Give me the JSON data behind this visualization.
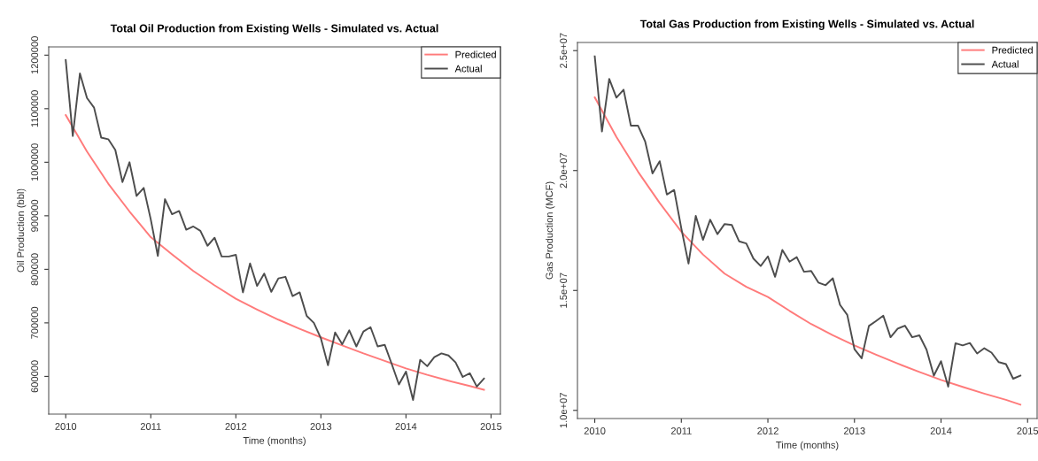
{
  "chart_data": [
    {
      "type": "line",
      "title": "Total Oil Production from Existing Wells - Simulated vs. Actual",
      "xlabel": "Time (months)",
      "ylabel": "Oil Production (bbl)",
      "xlim": [
        2009.8,
        2015.11
      ],
      "xticks": [
        2010,
        2011,
        2012,
        2013,
        2014,
        2015
      ],
      "ylim": [
        529600,
        1215400
      ],
      "yticks": [
        600000,
        700000,
        800000,
        900000,
        1000000,
        1100000,
        1200000
      ],
      "grid": false,
      "legend": "top right",
      "line_style": "solid",
      "marker": "none",
      "series": [
        {
          "name": "Predicted",
          "color": "#ff7b7b",
          "x": [
            2010,
            2010.25,
            2010.5,
            2010.75,
            2011,
            2011.25,
            2011.5,
            2011.75,
            2012,
            2012.25,
            2012.5,
            2012.75,
            2013,
            2013.25,
            2013.5,
            2013.75,
            2014,
            2014.25,
            2014.5,
            2014.75,
            2014.917
          ],
          "values": [
            1088000,
            1020000,
            960000,
            908000,
            860000,
            828000,
            797000,
            770000,
            745000,
            725000,
            706000,
            689000,
            673000,
            658000,
            643000,
            629000,
            615000,
            603000,
            592000,
            582000,
            575000
          ]
        },
        {
          "name": "Actual",
          "color": "#4d4d4d",
          "x": [
            2010,
            2010.083,
            2010.167,
            2010.25,
            2010.333,
            2010.417,
            2010.5,
            2010.583,
            2010.667,
            2010.75,
            2010.833,
            2010.917,
            2011,
            2011.083,
            2011.167,
            2011.25,
            2011.333,
            2011.417,
            2011.5,
            2011.583,
            2011.667,
            2011.75,
            2011.833,
            2011.917,
            2012,
            2012.083,
            2012.167,
            2012.25,
            2012.333,
            2012.417,
            2012.5,
            2012.583,
            2012.667,
            2012.75,
            2012.833,
            2012.917,
            2013,
            2013.083,
            2013.167,
            2013.25,
            2013.333,
            2013.417,
            2013.5,
            2013.583,
            2013.667,
            2013.75,
            2013.833,
            2013.917,
            2014,
            2014.083,
            2014.167,
            2014.25,
            2014.333,
            2014.417,
            2014.5,
            2014.583,
            2014.667,
            2014.75,
            2014.833,
            2014.917
          ],
          "values": [
            1191000,
            1049000,
            1166000,
            1120000,
            1102000,
            1046000,
            1043000,
            1023000,
            963000,
            1000000,
            937000,
            952000,
            893000,
            825000,
            931000,
            903000,
            909000,
            874000,
            880000,
            872000,
            844000,
            859000,
            824000,
            824000,
            827000,
            757000,
            811000,
            769000,
            792000,
            758000,
            783000,
            786000,
            750000,
            757000,
            713000,
            700000,
            671000,
            621000,
            682000,
            660000,
            686000,
            656000,
            684000,
            692000,
            656000,
            659000,
            623000,
            585000,
            609000,
            556000,
            631000,
            619000,
            636000,
            643000,
            639000,
            626000,
            599000,
            606000,
            581000,
            596000
          ]
        }
      ]
    },
    {
      "type": "line",
      "title": "Total Gas Production from Existing Wells - Simulated vs. Actual",
      "xlabel": "Time (months)",
      "ylabel": "Gas Production (MCF)",
      "xlim": [
        2009.8,
        2015.11
      ],
      "xticks": [
        2010,
        2011,
        2012,
        2013,
        2014,
        2015
      ],
      "ylim": [
        9660000,
        25340000
      ],
      "yticks": [
        {
          "value": 10000000,
          "label": "1.0e+07"
        },
        {
          "value": 15000000,
          "label": "1.5e+07"
        },
        {
          "value": 20000000,
          "label": "2.0e+07"
        },
        {
          "value": 25000000,
          "label": "2.5e+07"
        }
      ],
      "grid": false,
      "legend": "top right",
      "line_style": "solid",
      "marker": "none",
      "series": [
        {
          "name": "Predicted",
          "color": "#ff7b7b",
          "x": [
            2010,
            2010.25,
            2010.5,
            2010.75,
            2011,
            2011.25,
            2011.5,
            2011.75,
            2012,
            2012.25,
            2012.5,
            2012.75,
            2013,
            2013.25,
            2013.5,
            2013.75,
            2014,
            2014.25,
            2014.5,
            2014.75,
            2014.917
          ],
          "values": [
            23050000,
            21400000,
            19950000,
            18650000,
            17450000,
            16500000,
            15700000,
            15150000,
            14730000,
            14150000,
            13600000,
            13130000,
            12710000,
            12320000,
            11950000,
            11600000,
            11270000,
            10980000,
            10700000,
            10440000,
            10240000
          ]
        },
        {
          "name": "Actual",
          "color": "#4d4d4d",
          "x": [
            2010,
            2010.083,
            2010.167,
            2010.25,
            2010.333,
            2010.417,
            2010.5,
            2010.583,
            2010.667,
            2010.75,
            2010.833,
            2010.917,
            2011,
            2011.083,
            2011.167,
            2011.25,
            2011.333,
            2011.417,
            2011.5,
            2011.583,
            2011.667,
            2011.75,
            2011.833,
            2011.917,
            2012,
            2012.083,
            2012.167,
            2012.25,
            2012.333,
            2012.417,
            2012.5,
            2012.583,
            2012.667,
            2012.75,
            2012.833,
            2012.917,
            2013,
            2013.083,
            2013.167,
            2013.25,
            2013.333,
            2013.417,
            2013.5,
            2013.583,
            2013.667,
            2013.75,
            2013.833,
            2013.917,
            2014,
            2014.083,
            2014.167,
            2014.25,
            2014.333,
            2014.417,
            2014.5,
            2014.583,
            2014.667,
            2014.75,
            2014.833,
            2014.917
          ],
          "values": [
            24760000,
            21630000,
            23820000,
            23040000,
            23370000,
            21870000,
            21870000,
            21200000,
            19880000,
            20390000,
            19000000,
            19190000,
            17590000,
            16120000,
            18110000,
            17110000,
            17950000,
            17350000,
            17770000,
            17730000,
            17050000,
            16960000,
            16330000,
            16020000,
            16420000,
            15570000,
            16690000,
            16200000,
            16390000,
            15780000,
            15810000,
            15330000,
            15220000,
            15510000,
            14400000,
            13980000,
            12550000,
            12170000,
            13520000,
            13730000,
            13950000,
            13050000,
            13410000,
            13530000,
            13050000,
            13130000,
            12530000,
            11450000,
            12050000,
            10990000,
            12800000,
            12710000,
            12810000,
            12370000,
            12590000,
            12410000,
            12010000,
            11930000,
            11320000,
            11450000
          ]
        }
      ]
    }
  ]
}
